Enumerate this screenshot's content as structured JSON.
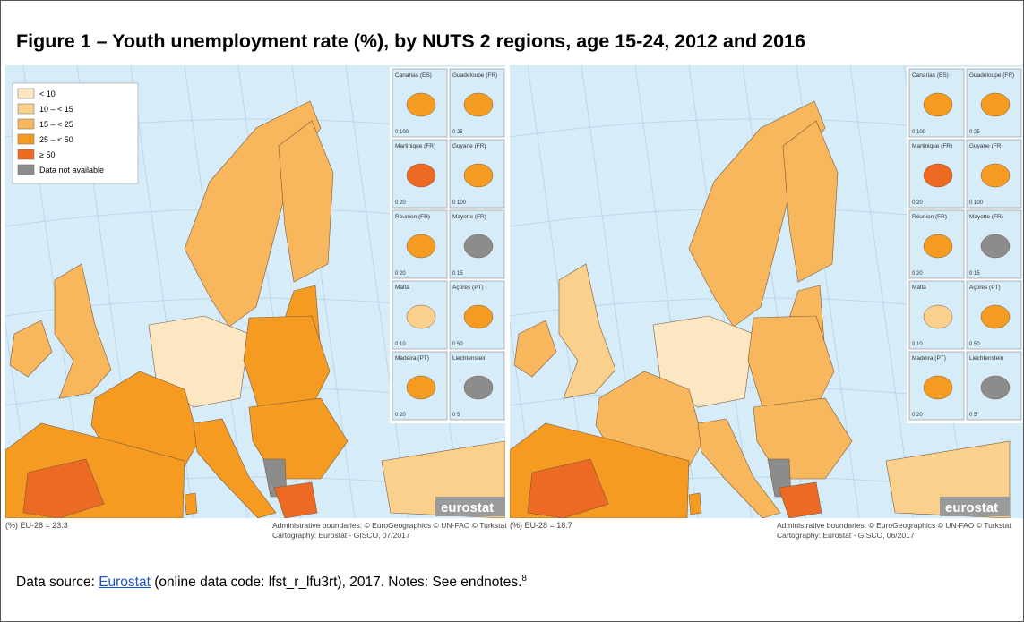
{
  "title": "Figure 1 – Youth unemployment rate (%), by NUTS 2 regions, age 15-24, 2012 and 2016",
  "legend": [
    {
      "label": "< 10",
      "color": "#fde6c2"
    },
    {
      "label": "10 – < 15",
      "color": "#fbd08c"
    },
    {
      "label": "15 – < 25",
      "color": "#f8b75c"
    },
    {
      "label": "25 – < 50",
      "color": "#f59b21"
    },
    {
      "label": "≥ 50",
      "color": "#ed6a25"
    },
    {
      "label": "Data not available",
      "color": "#8c8c8c"
    }
  ],
  "insets": [
    {
      "label": "Canarias (ES)",
      "scale": "0 100"
    },
    {
      "label": "Guadeloupe (FR)",
      "scale": "0 25"
    },
    {
      "label": "Martinique (FR)",
      "scale": "0 20"
    },
    {
      "label": "Guyane (FR)",
      "scale": "0 100"
    },
    {
      "label": "Réunion (FR)",
      "scale": "0 20"
    },
    {
      "label": "Mayotte (FR)",
      "scale": "0 15"
    },
    {
      "label": "Malta",
      "scale": "0 10"
    },
    {
      "label": "Açores (PT)",
      "scale": "0 50"
    },
    {
      "label": "Madeira (PT)",
      "scale": "0 20"
    },
    {
      "label": "Liechtenstein",
      "scale": "0 5"
    }
  ],
  "logo": "eurostat",
  "maps": [
    {
      "eu_note": "(%) EU-28 = 23.3",
      "credits": [
        "Administrative boundaries: © EuroGeographics © UN-FAO © Turkstat",
        "Cartography: Eurostat - GISCO, 07/2017"
      ]
    },
    {
      "eu_note": "(%) EU-28 = 18.7",
      "credits": [
        "Administrative boundaries: © EuroGeographics © UN-FAO © Turkstat",
        "Cartography: Eurostat - GISCO, 06/2017"
      ]
    }
  ],
  "source": {
    "prefix": "Data source: ",
    "link": "Eurostat",
    "rest": " (online data code: lfst_r_lfu3rt), 2017. Notes: See endnotes.",
    "note": "8"
  }
}
